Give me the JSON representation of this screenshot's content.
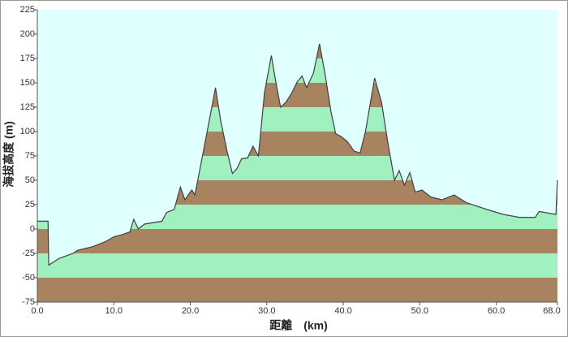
{
  "chart_data": {
    "type": "area",
    "xlabel": "距離　(km)",
    "ylabel": "海拔高度 (m)",
    "x": [
      0,
      1.4,
      1.5,
      2.9,
      4.7,
      5.2,
      7.3,
      8.9,
      10.0,
      11.0,
      12.1,
      12.6,
      13.2,
      14.0,
      16.3,
      16.9,
      17.9,
      18.7,
      19.3,
      20.2,
      20.6,
      21.1,
      22.2,
      23.3,
      24.0,
      24.8,
      25.5,
      26.1,
      26.7,
      27.5,
      28.2,
      28.9,
      29.7,
      30.6,
      31.2,
      31.8,
      32.5,
      33.3,
      33.9,
      34.6,
      35.2,
      36.1,
      36.9,
      37.6,
      38.4,
      39.0,
      39.7,
      40.5,
      41.4,
      42.2,
      42.9,
      44.1,
      45.0,
      45.8,
      46.7,
      47.3,
      48.0,
      48.7,
      49.4,
      50.3,
      51.4,
      52.9,
      54.5,
      56.1,
      58.8,
      60.9,
      63.0,
      65.1,
      65.6,
      67.8,
      68.0
    ],
    "values": [
      8,
      8,
      -37,
      -30,
      -25,
      -22,
      -18,
      -13,
      -8,
      -6,
      -3,
      10,
      0,
      5,
      8,
      17,
      20,
      43,
      30,
      40,
      35,
      55,
      100,
      145,
      110,
      80,
      57,
      62,
      72,
      73,
      85,
      75,
      140,
      178,
      150,
      125,
      130,
      140,
      150,
      157,
      145,
      160,
      190,
      160,
      120,
      98,
      95,
      90,
      80,
      78,
      100,
      155,
      130,
      90,
      50,
      60,
      45,
      58,
      38,
      40,
      33,
      30,
      35,
      27,
      20,
      15,
      12,
      12,
      18,
      15,
      50
    ],
    "color": "#404040",
    "band_colors": [
      "#a8835f",
      "#a0f0c0"
    ],
    "background": "#e0ffff",
    "xlim": [
      0,
      68
    ],
    "xticks": [
      {
        "value": 0,
        "label": "0.0"
      },
      {
        "value": 10,
        "label": "10.0"
      },
      {
        "value": 20,
        "label": "20.0"
      },
      {
        "value": 30,
        "label": "30.0"
      },
      {
        "value": 40,
        "label": "40.0"
      },
      {
        "value": 50,
        "label": "50.0"
      },
      {
        "value": 60,
        "label": "60.0"
      },
      {
        "value": 68,
        "label": "68.0"
      }
    ],
    "ylim": [
      -75,
      225
    ],
    "yticks": [
      -75,
      -50,
      -25,
      0,
      25,
      50,
      75,
      100,
      125,
      150,
      175,
      200,
      225
    ]
  }
}
